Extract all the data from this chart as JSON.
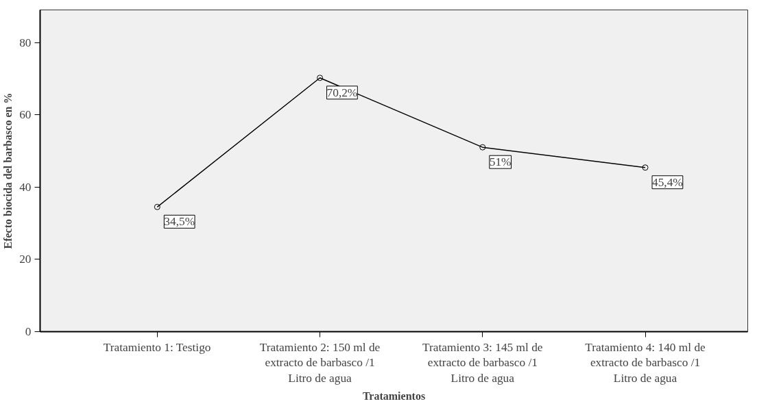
{
  "chart_data": {
    "type": "line",
    "xlabel": "Tratamientos",
    "ylabel": "Efecto biocida del barbasco en %",
    "categories": [
      "Tratamiento 1: Testigo",
      "Tratamiento 2: 150 ml de\nextracto de barbasco /1\nLitro de agua",
      "Tratamiento 3: 145 ml de\nextracto de barbasco /1\nLitro de agua",
      "Tratamiento 4: 140 ml de\nextracto de barbasco /1\nLitro de agua"
    ],
    "series": [
      {
        "color": "#000000",
        "values": [
          34.5,
          70.2,
          51,
          45.4
        ],
        "value_labels": [
          "34,5%",
          "70,2%",
          "51%",
          "45,4%"
        ]
      }
    ],
    "ylim": [
      0,
      89
    ],
    "yticks": [
      0,
      20,
      40,
      60,
      80
    ],
    "marker": "circle",
    "line_style": "solid",
    "grid": false
  }
}
